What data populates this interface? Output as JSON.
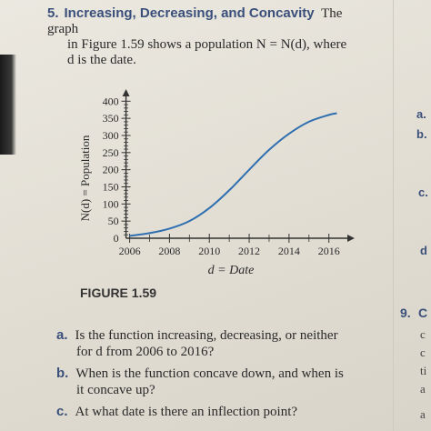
{
  "problem": {
    "number": "5.",
    "title": "Increasing, Decreasing, and Concavity",
    "text_line1": "The graph",
    "text_line2": "in Figure 1.59 shows a population N = N(d), where",
    "text_line3": "d is the date."
  },
  "figure_label": "FIGURE 1.59",
  "questions": [
    {
      "letter": "a.",
      "line1": "Is the function increasing, decreasing, or neither",
      "line2": "for d from 2006 to 2016?"
    },
    {
      "letter": "b.",
      "line1": "When is the function concave down, and when is",
      "line2": "it concave up?"
    },
    {
      "letter": "c.",
      "line1": "At what date is there an inflection point?",
      "line2": ""
    }
  ],
  "right_column": {
    "labels": [
      "a.",
      "b.",
      "c.",
      "d",
      "9.",
      "C"
    ],
    "fragments": [
      "c",
      "c",
      "ti",
      "a",
      "a"
    ]
  },
  "chart_data": {
    "type": "line",
    "xlabel": "d = Date",
    "ylabel": "N(d) = Population",
    "x_ticks": [
      "2006",
      "2008",
      "2010",
      "2012",
      "2014",
      "2016"
    ],
    "y_ticks": [
      "0",
      "50",
      "100",
      "150",
      "200",
      "250",
      "300",
      "350",
      "400"
    ],
    "xlim": [
      2005.7,
      2017.2
    ],
    "ylim": [
      0,
      430
    ],
    "grid": false,
    "series": [
      {
        "x": [
          2006,
          2007,
          2008,
          2009,
          2010,
          2011,
          2012,
          2013,
          2014,
          2015,
          2016,
          2016.4
        ],
        "values": [
          7,
          15,
          28,
          50,
          88,
          140,
          200,
          258,
          305,
          340,
          360,
          365
        ]
      }
    ],
    "colors": {
      "curve": "#2f6fb0",
      "axes": "#333333"
    }
  }
}
